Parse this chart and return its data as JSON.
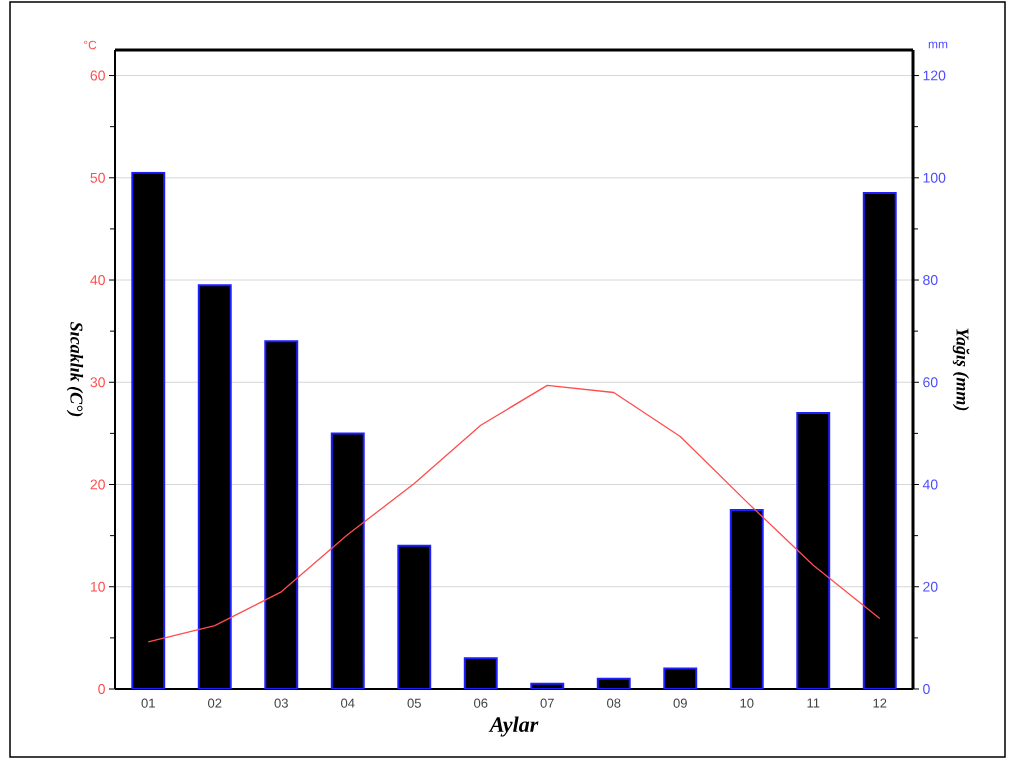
{
  "chart_data": {
    "type": "bar",
    "categories": [
      "01",
      "02",
      "03",
      "04",
      "05",
      "06",
      "07",
      "08",
      "09",
      "10",
      "11",
      "12"
    ],
    "series": [
      {
        "axis": "y2",
        "color": "#000000",
        "values": [
          101,
          79,
          68,
          50,
          28,
          6,
          1,
          2,
          4,
          35,
          54,
          97
        ]
      },
      {
        "type": "line",
        "axis": "y",
        "color": "#ff4d4d",
        "values": [
          4.6,
          6.2,
          9.5,
          15.1,
          20.1,
          25.8,
          29.7,
          29.0,
          24.7,
          18.3,
          12.1,
          6.9
        ]
      }
    ],
    "xlabel": "Aylar",
    "ylabel": "Sıcaklık (C°)",
    "y2label": "Yağış (mm)",
    "annotations": [
      "°C",
      "mm"
    ],
    "ylim": [
      0,
      62.5
    ],
    "yticks": [
      0,
      10,
      20,
      30,
      40,
      50,
      60
    ],
    "y2lim": [
      0,
      125
    ],
    "y2ticks": [
      0,
      20,
      40,
      60,
      80,
      100,
      120
    ],
    "grid": "y"
  }
}
